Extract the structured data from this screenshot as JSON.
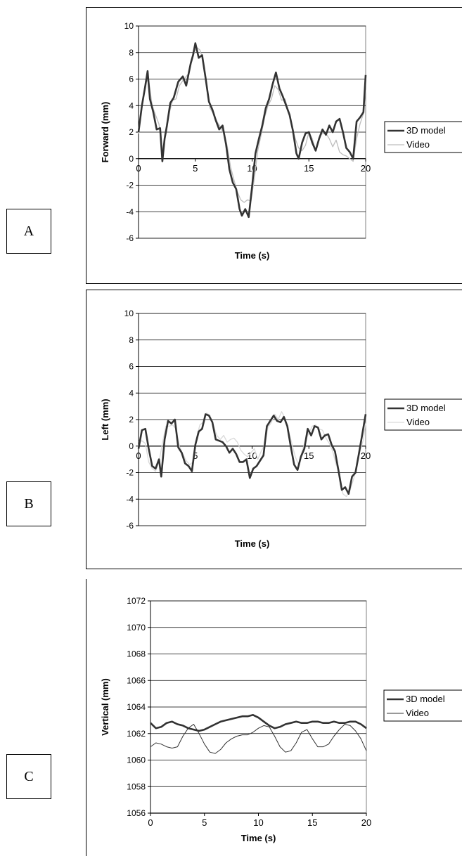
{
  "panel_labels": [
    "A",
    "B",
    "C"
  ],
  "colors": {
    "model": "#333333",
    "video": "#bdbdbd",
    "video_c": "#333333",
    "grid": "#000000"
  },
  "chart_data": [
    {
      "type": "line",
      "panel": "A",
      "xlabel": "Time (s)",
      "ylabel": "Forward (mm)",
      "xlim": [
        0,
        20
      ],
      "ylim": [
        -6,
        10
      ],
      "xticks": [
        0,
        5,
        10,
        15,
        20
      ],
      "yticks": [
        -6,
        -4,
        -2,
        0,
        2,
        4,
        6,
        8,
        10
      ],
      "grid": "horizontal",
      "legend_position": "right",
      "series": [
        {
          "name": "3D model",
          "color": "#333333",
          "width": 2.6,
          "x": [
            0,
            0.3,
            0.6,
            0.8,
            1.0,
            1.3,
            1.6,
            1.9,
            2.1,
            2.3,
            2.5,
            2.8,
            3.1,
            3.5,
            3.9,
            4.2,
            4.6,
            4.8,
            5.0,
            5.3,
            5.6,
            5.9,
            6.2,
            6.5,
            6.8,
            7.1,
            7.4,
            7.7,
            8.0,
            8.3,
            8.6,
            8.9,
            9.1,
            9.4,
            9.7,
            10.0,
            10.3,
            10.6,
            10.9,
            11.2,
            11.5,
            11.8,
            12.1,
            12.4,
            12.7,
            13.0,
            13.3,
            13.6,
            13.9,
            14.1,
            14.4,
            14.7,
            15.0,
            15.3,
            15.6,
            15.9,
            16.2,
            16.5,
            16.8,
            17.1,
            17.4,
            17.7,
            18.0,
            18.3,
            18.6,
            18.9,
            19.2,
            19.5,
            19.8,
            20.0
          ],
          "y": [
            2.0,
            4.0,
            5.5,
            6.6,
            4.5,
            3.5,
            2.2,
            2.3,
            -0.2,
            1.5,
            2.5,
            4.2,
            4.6,
            5.8,
            6.2,
            5.5,
            7.2,
            7.8,
            8.7,
            7.6,
            7.8,
            6.1,
            4.3,
            3.7,
            2.9,
            2.2,
            2.5,
            1.1,
            -0.8,
            -1.8,
            -2.3,
            -3.8,
            -4.3,
            -3.8,
            -4.4,
            -2.1,
            0.4,
            1.5,
            2.5,
            3.8,
            4.5,
            5.6,
            6.5,
            5.3,
            4.7,
            4.0,
            3.3,
            2.1,
            0.4,
            0.0,
            1.2,
            1.9,
            2.0,
            1.2,
            0.6,
            1.5,
            2.2,
            1.8,
            2.5,
            2.0,
            2.8,
            3.0,
            2.0,
            0.8,
            0.5,
            0.0,
            2.8,
            3.1,
            3.5,
            6.3
          ]
        },
        {
          "name": "Video",
          "color": "#bdbdbd",
          "width": 1.3,
          "x": [
            0,
            0.3,
            0.6,
            0.9,
            1.2,
            1.5,
            1.8,
            2.1,
            2.4,
            2.7,
            3.0,
            3.3,
            3.6,
            4.0,
            4.4,
            4.8,
            5.1,
            5.4,
            5.7,
            6.0,
            6.3,
            6.6,
            6.9,
            7.2,
            7.5,
            7.8,
            8.1,
            8.4,
            8.7,
            9.0,
            9.3,
            9.6,
            9.9,
            10.2,
            10.5,
            10.8,
            11.1,
            11.4,
            11.7,
            12.0,
            12.3,
            12.6,
            12.9,
            13.2,
            13.5,
            13.8,
            14.1,
            14.4,
            14.7,
            15.0,
            15.3,
            15.6,
            15.9,
            16.2,
            16.5,
            16.8,
            17.1,
            17.4,
            17.7,
            18.0,
            18.3,
            18.6,
            18.9,
            19.2,
            19.5,
            19.8,
            20.0
          ],
          "y": [
            1.9,
            3.8,
            5.8,
            5.9,
            4.0,
            3.3,
            2.6,
            0.6,
            1.8,
            3.4,
            4.4,
            4.5,
            5.5,
            6.0,
            6.4,
            7.7,
            8.4,
            8.2,
            7.4,
            5.5,
            3.8,
            3.4,
            2.8,
            2.4,
            1.9,
            1.0,
            -0.6,
            -1.6,
            -2.5,
            -3.1,
            -3.3,
            -3.1,
            -3.2,
            -1.5,
            0.6,
            1.8,
            3.1,
            4.0,
            4.5,
            5.5,
            5.2,
            4.4,
            4.5,
            3.6,
            2.4,
            1.5,
            0.8,
            0.6,
            1.0,
            2.0,
            1.5,
            0.6,
            1.6,
            1.9,
            1.9,
            1.5,
            0.9,
            1.4,
            0.5,
            0.3,
            0.2,
            0.0,
            -0.2,
            1.5,
            2.6,
            3.4,
            5.2
          ]
        }
      ]
    },
    {
      "type": "line",
      "panel": "B",
      "xlabel": "Time (s)",
      "ylabel": "Left (mm)",
      "xlim": [
        0,
        20
      ],
      "ylim": [
        -6,
        10
      ],
      "xticks": [
        0,
        5,
        10,
        15,
        20
      ],
      "yticks": [
        -6,
        -4,
        -2,
        0,
        2,
        4,
        6,
        8,
        10
      ],
      "grid": "horizontal",
      "legend_position": "right",
      "series": [
        {
          "name": "3D model",
          "color": "#333333",
          "width": 2.6,
          "x": [
            0,
            0.3,
            0.6,
            0.9,
            1.2,
            1.5,
            1.8,
            2.0,
            2.3,
            2.6,
            2.9,
            3.2,
            3.5,
            3.8,
            4.1,
            4.4,
            4.7,
            5.0,
            5.3,
            5.6,
            5.9,
            6.2,
            6.5,
            6.8,
            7.1,
            7.4,
            7.7,
            8.0,
            8.3,
            8.6,
            8.9,
            9.2,
            9.5,
            9.8,
            10.1,
            10.4,
            10.7,
            11.0,
            11.3,
            11.6,
            11.9,
            12.2,
            12.5,
            12.8,
            13.1,
            13.4,
            13.7,
            14.0,
            14.3,
            14.6,
            14.9,
            15.2,
            15.5,
            15.8,
            16.1,
            16.4,
            16.7,
            17.0,
            17.3,
            17.6,
            17.9,
            18.2,
            18.5,
            18.8,
            19.1,
            19.4,
            19.7,
            20.0
          ],
          "y": [
            -0.2,
            1.2,
            1.3,
            -0.2,
            -1.5,
            -1.7,
            -1.0,
            -2.3,
            0.5,
            1.9,
            1.7,
            2.0,
            -0.1,
            -0.5,
            -1.3,
            -1.5,
            -1.9,
            0.1,
            1.1,
            1.3,
            2.4,
            2.3,
            1.8,
            0.5,
            0.4,
            0.3,
            0.0,
            -0.5,
            -0.2,
            -0.6,
            -1.2,
            -1.2,
            -1.0,
            -2.4,
            -1.7,
            -1.5,
            -1.1,
            -0.7,
            1.5,
            1.9,
            2.3,
            1.9,
            1.8,
            2.2,
            1.5,
            0.0,
            -1.4,
            -1.8,
            -0.8,
            -0.2,
            1.3,
            0.8,
            1.5,
            1.4,
            0.5,
            0.8,
            0.9,
            0.1,
            -0.4,
            -1.8,
            -3.3,
            -3.1,
            -3.6,
            -2.3,
            -2.0,
            -0.6,
            0.9,
            2.4
          ]
        },
        {
          "name": "Video",
          "color": "#d9d9d9",
          "width": 1.3,
          "x": [
            0,
            0.3,
            0.6,
            0.9,
            1.2,
            1.5,
            1.8,
            2.1,
            2.4,
            2.7,
            3.0,
            3.3,
            3.6,
            3.9,
            4.2,
            4.5,
            4.8,
            5.1,
            5.4,
            5.7,
            6.0,
            6.3,
            6.6,
            6.9,
            7.2,
            7.5,
            7.8,
            8.1,
            8.4,
            8.7,
            9.0,
            9.3,
            9.6,
            9.9,
            10.2,
            10.5,
            10.8,
            11.1,
            11.4,
            11.7,
            12.0,
            12.3,
            12.6,
            12.9,
            13.2,
            13.5,
            13.8,
            14.1,
            14.4,
            14.7,
            15.0,
            15.3,
            15.6,
            15.9,
            16.2,
            16.5,
            16.8,
            17.1,
            17.4,
            17.7,
            18.0,
            18.3,
            18.6,
            18.9,
            19.2,
            19.5,
            19.8,
            20.0
          ],
          "y": [
            0.3,
            0.4,
            0.2,
            -1.2,
            -1.7,
            -1.9,
            -1.2,
            0.2,
            1.5,
            1.5,
            1.6,
            1.3,
            0.0,
            -0.6,
            -1.1,
            -1.4,
            -1.2,
            0.6,
            1.6,
            1.8,
            2.5,
            2.3,
            1.5,
            0.8,
            0.5,
            0.8,
            0.3,
            0.5,
            0.6,
            0.3,
            -0.3,
            -0.6,
            -0.8,
            -0.5,
            -0.2,
            -1.0,
            -0.4,
            0.1,
            1.4,
            1.8,
            2.4,
            2.0,
            2.6,
            2.1,
            1.2,
            0.2,
            -0.8,
            -1.4,
            -0.4,
            0.4,
            1.0,
            1.5,
            1.6,
            1.3,
            1.2,
            0.6,
            0.2,
            -0.4,
            -1.4,
            -2.1,
            -3.6,
            -3.8,
            -3.4,
            -2.6,
            -1.6,
            -0.4,
            0.5,
            1.7
          ]
        }
      ]
    },
    {
      "type": "line",
      "panel": "C",
      "xlabel": "Time (s)",
      "ylabel": "Vertical (mm)",
      "xlim": [
        0,
        20
      ],
      "ylim": [
        1056,
        1072
      ],
      "xticks": [
        0,
        5,
        10,
        15,
        20
      ],
      "yticks": [
        1056,
        1058,
        1060,
        1062,
        1064,
        1066,
        1068,
        1070,
        1072
      ],
      "grid": "horizontal",
      "legend_position": "right",
      "series": [
        {
          "name": "3D model",
          "color": "#333333",
          "width": 2.6,
          "x": [
            0,
            0.5,
            1.0,
            1.5,
            2.0,
            2.5,
            3.0,
            3.5,
            4.0,
            4.5,
            5.0,
            5.5,
            6.0,
            6.5,
            7.0,
            7.5,
            8.0,
            8.5,
            9.0,
            9.5,
            10.0,
            10.5,
            11.0,
            11.5,
            12.0,
            12.5,
            13.0,
            13.5,
            14.0,
            14.5,
            15.0,
            15.5,
            16.0,
            16.5,
            17.0,
            17.5,
            18.0,
            18.5,
            19.0,
            19.5,
            20.0
          ],
          "y": [
            1062.8,
            1062.4,
            1062.5,
            1062.8,
            1062.9,
            1062.7,
            1062.6,
            1062.4,
            1062.3,
            1062.2,
            1062.3,
            1062.5,
            1062.7,
            1062.9,
            1063.0,
            1063.1,
            1063.2,
            1063.3,
            1063.3,
            1063.4,
            1063.2,
            1062.9,
            1062.6,
            1062.4,
            1062.5,
            1062.7,
            1062.8,
            1062.9,
            1062.8,
            1062.8,
            1062.9,
            1062.9,
            1062.8,
            1062.8,
            1062.9,
            1062.8,
            1062.8,
            1062.9,
            1062.9,
            1062.7,
            1062.4
          ]
        },
        {
          "name": "Video",
          "color": "#333333",
          "width": 1.0,
          "x": [
            0,
            0.5,
            1.0,
            1.5,
            2.0,
            2.5,
            3.0,
            3.5,
            4.0,
            4.5,
            5.0,
            5.5,
            6.0,
            6.5,
            7.0,
            7.5,
            8.0,
            8.5,
            9.0,
            9.5,
            10.0,
            10.5,
            11.0,
            11.5,
            12.0,
            12.5,
            13.0,
            13.5,
            14.0,
            14.5,
            15.0,
            15.5,
            16.0,
            16.5,
            17.0,
            17.5,
            18.0,
            18.5,
            19.0,
            19.5,
            20.0
          ],
          "y": [
            1061.0,
            1061.3,
            1061.2,
            1061.0,
            1060.9,
            1061.0,
            1061.8,
            1062.4,
            1062.7,
            1062.0,
            1061.2,
            1060.6,
            1060.5,
            1060.8,
            1061.3,
            1061.6,
            1061.8,
            1061.9,
            1061.9,
            1062.1,
            1062.4,
            1062.6,
            1062.5,
            1061.8,
            1061.0,
            1060.6,
            1060.7,
            1061.3,
            1062.1,
            1062.3,
            1061.6,
            1061.0,
            1061.0,
            1061.2,
            1061.8,
            1062.3,
            1062.7,
            1062.6,
            1062.2,
            1061.6,
            1060.7
          ]
        }
      ]
    }
  ]
}
